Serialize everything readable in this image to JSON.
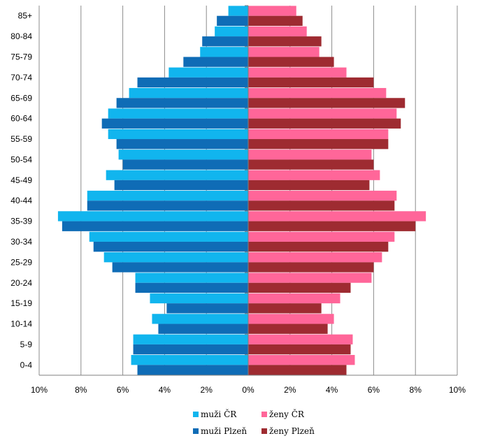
{
  "chart_data": {
    "type": "bar",
    "orientation": "horizontal",
    "categories": [
      "0-4",
      "5-9",
      "10-14",
      "15-19",
      "20-24",
      "25-29",
      "30-34",
      "35-39",
      "40-44",
      "45-49",
      "50-54",
      "55-59",
      "60-64",
      "65-69",
      "70-74",
      "75-79",
      "80-84",
      "85+"
    ],
    "x_tick_labels": [
      "10%",
      "8%",
      "6%",
      "4%",
      "2%",
      "0%",
      "2%",
      "4%",
      "6%",
      "8%",
      "10%"
    ],
    "xlim": [
      -10,
      10
    ],
    "grid": true,
    "legend_position": "bottom",
    "series": [
      {
        "name": "muži ČR",
        "side": "left",
        "color": "#11B5EE",
        "values": [
          5.6,
          5.5,
          4.6,
          4.7,
          5.4,
          6.9,
          7.6,
          9.1,
          7.7,
          6.8,
          6.2,
          6.7,
          6.7,
          5.7,
          3.8,
          2.3,
          1.6,
          0.95
        ]
      },
      {
        "name": "muži Plzeň",
        "side": "left",
        "color": "#0F6CB6",
        "values": [
          5.3,
          5.5,
          4.3,
          3.9,
          5.4,
          6.5,
          7.4,
          8.9,
          7.7,
          6.4,
          6.0,
          6.3,
          7.0,
          6.3,
          5.3,
          3.1,
          2.2,
          1.5
        ]
      },
      {
        "name": "ženy ČR",
        "side": "right",
        "color": "#FF6699",
        "values": [
          5.1,
          5.0,
          4.1,
          4.4,
          5.9,
          6.4,
          7.0,
          8.5,
          7.1,
          6.3,
          5.9,
          6.7,
          7.1,
          6.6,
          4.7,
          3.4,
          2.8,
          2.3
        ]
      },
      {
        "name": "ženy Plzeň",
        "side": "right",
        "color": "#9E2B31",
        "values": [
          4.7,
          4.9,
          3.8,
          3.5,
          4.9,
          6.0,
          6.7,
          8.0,
          7.0,
          5.8,
          6.0,
          6.7,
          7.3,
          7.5,
          6.0,
          4.1,
          3.5,
          2.6
        ]
      }
    ]
  }
}
